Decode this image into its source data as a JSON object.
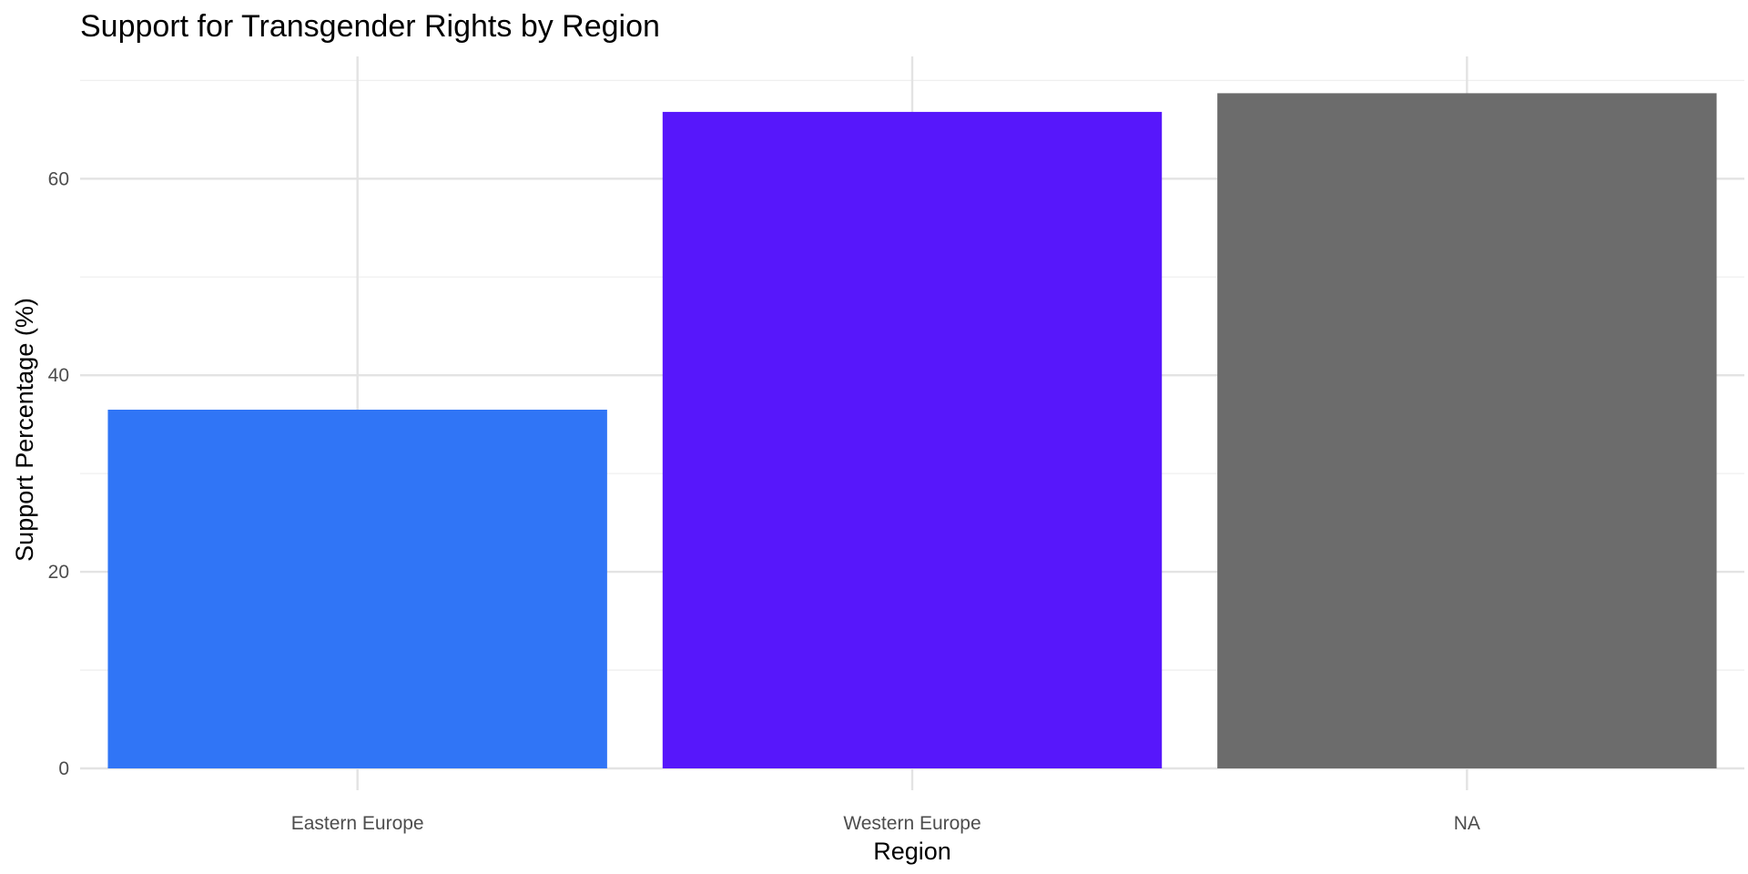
{
  "chart_data": {
    "type": "bar",
    "title": "Support for Transgender Rights by Region",
    "xlabel": "Region",
    "ylabel": "Support Percentage (%)",
    "categories": [
      "Eastern Europe",
      "Western Europe",
      "NA"
    ],
    "values": [
      36.5,
      66.8,
      68.7
    ],
    "colors": [
      "#3075f6",
      "#5717fb",
      "#6c6c6c"
    ],
    "ylim": [
      0,
      72
    ],
    "yticks": [
      0,
      20,
      40,
      60
    ],
    "yticks_minor": [
      10,
      30,
      50,
      70
    ],
    "ytick_labels": [
      "0",
      "20",
      "40",
      "60"
    ],
    "grid": true,
    "legend": "none"
  }
}
